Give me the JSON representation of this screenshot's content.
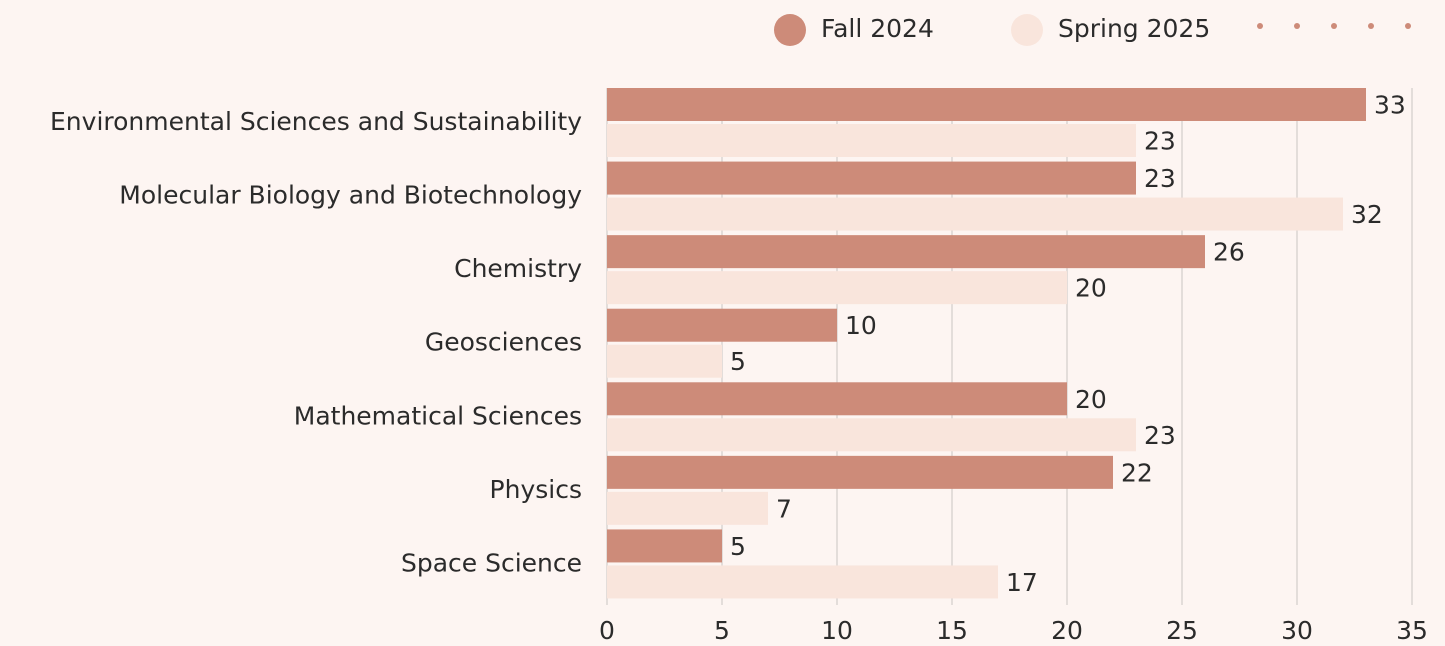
{
  "chart_data": {
    "type": "bar",
    "orientation": "horizontal",
    "categories": [
      "Environmental Sciences and Sustainability",
      "Molecular Biology and Biotechnology",
      "Chemistry",
      "Geosciences",
      "Mathematical Sciences",
      "Physics",
      "Space Science"
    ],
    "series": [
      {
        "name": "Fall 2024",
        "color": "#cd8b79",
        "values": [
          33,
          23,
          26,
          10,
          20,
          22,
          5
        ]
      },
      {
        "name": "Spring 2025",
        "color": "#f9e5dc",
        "values": [
          23,
          32,
          20,
          5,
          23,
          7,
          17
        ]
      }
    ],
    "xlim": [
      0,
      35
    ],
    "xticks": [
      0,
      5,
      10,
      15,
      20,
      25,
      30,
      35
    ],
    "grid": true,
    "legend": "top"
  }
}
